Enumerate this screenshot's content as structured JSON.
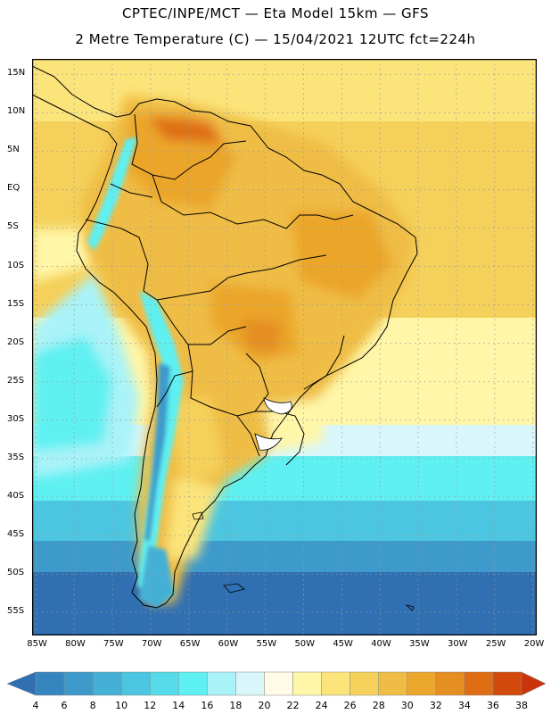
{
  "header": {
    "line1": "CPTEC/INPE/MCT —  Eta Model 15km — GFS",
    "line2": "2 Metre Temperature (C) — 15/04/2021 12UTC fct=224h"
  },
  "map": {
    "lat_labels": [
      "15N",
      "10N",
      "5N",
      "EQ",
      "5S",
      "10S",
      "15S",
      "20S",
      "25S",
      "30S",
      "35S",
      "40S",
      "45S",
      "50S",
      "55S"
    ],
    "lat_values": [
      15,
      10,
      5,
      0,
      -5,
      -10,
      -15,
      -20,
      -25,
      -30,
      -35,
      -40,
      -45,
      -50,
      -55
    ],
    "lon_labels": [
      "85W",
      "80W",
      "75W",
      "70W",
      "65W",
      "60W",
      "55W",
      "50W",
      "45W",
      "40W",
      "35W",
      "30W",
      "25W",
      "20W"
    ],
    "lon_values": [
      -85,
      -80,
      -75,
      -70,
      -65,
      -60,
      -55,
      -50,
      -45,
      -40,
      -35,
      -30,
      -25,
      -20
    ],
    "lat_range": [
      -58,
      17
    ],
    "lon_range": [
      -85.5,
      -19.5
    ],
    "grid": true
  },
  "colorbar": {
    "labels": [
      "4",
      "6",
      "8",
      "10",
      "12",
      "14",
      "16",
      "18",
      "20",
      "22",
      "24",
      "26",
      "28",
      "30",
      "32",
      "34",
      "36",
      "38"
    ],
    "colors": [
      "#2f6fb2",
      "#3585be",
      "#3d9acb",
      "#44b0d6",
      "#4cc6e0",
      "#55dbe9",
      "#5ef0f2",
      "#a9f3f8",
      "#d9f7fb",
      "#fffbe6",
      "#fff6a8",
      "#fbe47a",
      "#f5d05a",
      "#efbd45",
      "#eba62c",
      "#e58e22",
      "#de6d14",
      "#d24a0b",
      "#c9340b"
    ]
  }
}
